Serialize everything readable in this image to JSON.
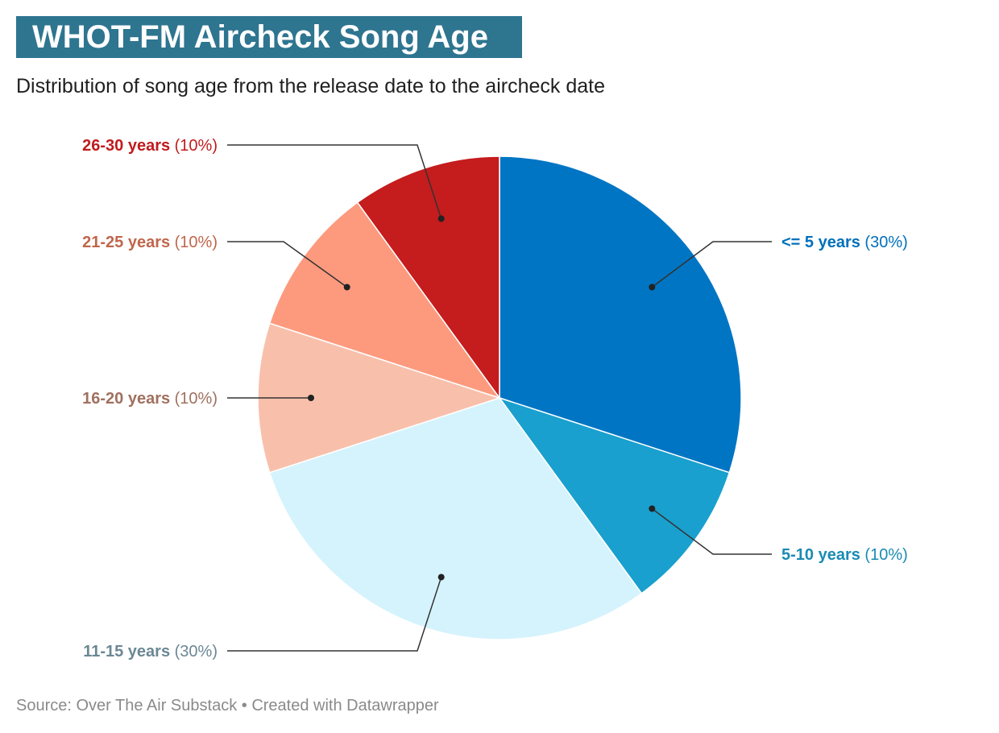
{
  "chart_data": {
    "type": "pie",
    "title": "WHOT-FM Aircheck Song Age",
    "subtitle": "Distribution of song age from the release date to the aircheck date",
    "slices": [
      {
        "label": "<= 5 years",
        "value": 30,
        "pct_label": "(30%)",
        "color": "#0075c4",
        "label_color": "#0070bb"
      },
      {
        "label": "5-10 years",
        "value": 10,
        "pct_label": "(10%)",
        "color": "#19a0ce",
        "label_color": "#1a8bb3"
      },
      {
        "label": "11-15 years",
        "value": 30,
        "pct_label": "(30%)",
        "color": "#d5f3fc",
        "label_color": "#6b8794"
      },
      {
        "label": "16-20 years",
        "value": 10,
        "pct_label": "(10%)",
        "color": "#f8c0ab",
        "label_color": "#a0705e"
      },
      {
        "label": "21-25 years",
        "value": 10,
        "pct_label": "(10%)",
        "color": "#fd9a7e",
        "label_color": "#c0664c"
      },
      {
        "label": "26-30 years",
        "value": 10,
        "pct_label": "(10%)",
        "color": "#c51c1d",
        "label_color": "#c01b1d"
      }
    ]
  },
  "footer": {
    "source": "Source: Over The Air Substack",
    "separator": " • ",
    "credit": "Created with Datawrapper"
  }
}
